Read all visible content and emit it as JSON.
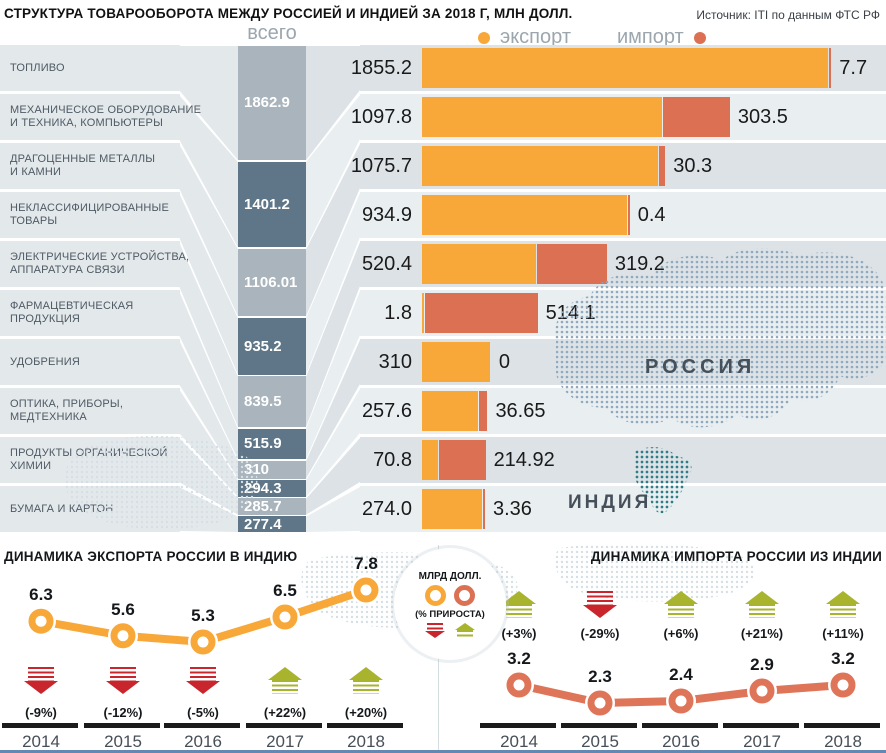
{
  "header": {
    "title": "СТРУКТУРА ТОВАРООБОРОТА МЕЖДУ РОССИЕЙ И ИНДИЕЙ ЗА 2018 Г, МЛН ДОЛЛ.",
    "source": "Источник: ITI по данным ФТС РФ"
  },
  "legend": {
    "total_label": "всего",
    "export_label": "экспорт",
    "import_label": "импорт"
  },
  "map": {
    "russia_label": "РОССИЯ",
    "india_label": "ИНДИЯ"
  },
  "badge": {
    "line1": "МЛРД ДОЛЛ.",
    "line2": "(% ПРИРОСТА)"
  },
  "colors": {
    "export": "#F7A838",
    "import": "#DC7053",
    "total_light": "#A9B4BC",
    "total_dark": "#5E7687",
    "stripe_dark": "#DCE2E6",
    "stripe_light": "#E9EEF1",
    "band": "#E3E8EB",
    "arrow_up": "#A9B42E",
    "arrow_down": "#C9252C",
    "timeline_bar": "#1B1B1B",
    "map_russia": "#8FA9BE",
    "map_india": "#2F7D86",
    "map_faint": "#D5DFE5",
    "bottom_border": "#6389B2",
    "import_line": "#DF7558"
  },
  "chart_data": [
    {
      "type": "bar",
      "title": "СТРУКТУРА ТОВАРООБОРОТА МЕЖДУ РОССИЕЙ И ИНДИЕЙ ЗА 2018 Г, МЛН ДОЛЛ.",
      "units": "млн долл.",
      "legend": [
        "экспорт",
        "импорт"
      ],
      "rows": [
        {
          "label_lines": [
            "ТОПЛИВО"
          ],
          "total": 1862.9,
          "total_display": "1862.9",
          "export": 1855.2,
          "export_display": "1855.2",
          "import": 7.7,
          "import_display": "7.7"
        },
        {
          "label_lines": [
            "МЕХАНИЧЕСКОЕ ОБОРУДОВАНИЕ",
            "И ТЕХНИКА, КОМПЬЮТЕРЫ"
          ],
          "total": 1401.2,
          "total_display": "1401.2",
          "export": 1097.8,
          "export_display": "1097.8",
          "import": 303.5,
          "import_display": "303.5"
        },
        {
          "label_lines": [
            "ДРАГОЦЕННЫЕ МЕТАЛЛЫ",
            "И КАМНИ"
          ],
          "total": 1106.01,
          "total_display": "1106.01",
          "export": 1075.7,
          "export_display": "1075.7",
          "import": 30.3,
          "import_display": "30.3"
        },
        {
          "label_lines": [
            "НЕКЛАССИФИЦИРОВАННЫЕ",
            "ТОВАРЫ"
          ],
          "total": 935.2,
          "total_display": "935.2",
          "export": 934.9,
          "export_display": "934.9",
          "import": 0.4,
          "import_display": "0.4"
        },
        {
          "label_lines": [
            "ЭЛЕКТРИЧЕСКИЕ УСТРОЙСТВА,",
            "АППАРАТУРА СВЯЗИ"
          ],
          "total": 839.5,
          "total_display": "839.5",
          "export": 520.4,
          "export_display": "520.4",
          "import": 319.2,
          "import_display": "319.2"
        },
        {
          "label_lines": [
            "ФАРМАЦЕВТИЧЕСКАЯ",
            "ПРОДУКЦИЯ"
          ],
          "total": 515.9,
          "total_display": "515.9",
          "export": 1.8,
          "export_display": "1.8",
          "import": 514.1,
          "import_display": "514.1"
        },
        {
          "label_lines": [
            "УДОБРЕНИЯ"
          ],
          "total": 310,
          "total_display": "310",
          "export": 310,
          "export_display": "310",
          "import": 0,
          "import_display": "0"
        },
        {
          "label_lines": [
            "ОПТИКА, ПРИБОРЫ,",
            "МЕДТЕХНИКА"
          ],
          "total": 294.3,
          "total_display": "294.3",
          "export": 257.6,
          "export_display": "257.6",
          "import": 36.65,
          "import_display": "36.65"
        },
        {
          "label_lines": [
            "ПРОДУКТЫ ОРГАНИЧЕСКОЙ",
            "ХИМИИ"
          ],
          "total": 285.7,
          "total_display": "285.7",
          "export": 70.8,
          "export_display": "70.8",
          "import": 214.92,
          "import_display": "214.92"
        },
        {
          "label_lines": [
            "БУМАГА И КАРТОН"
          ],
          "total": 277.4,
          "total_display": "277.4",
          "export": 274.0,
          "export_display": "274.0",
          "import": 3.36,
          "import_display": "3.36"
        }
      ]
    },
    {
      "type": "line",
      "title": "ДИНАМИКА ЭКСПОРТА РОССИИ В ИНДИЮ",
      "units": "МЛРД ДОЛЛ.",
      "x": [
        2014,
        2015,
        2016,
        2017,
        2018
      ],
      "values": [
        6.3,
        5.6,
        5.3,
        6.5,
        7.8
      ],
      "value_displays": [
        "6.3",
        "5.6",
        "5.3",
        "6.5",
        "7.8"
      ],
      "pct_change": [
        "(-9%)",
        "(-12%)",
        "(-5%)",
        "(+22%)",
        "(+20%)"
      ],
      "directions": [
        "down",
        "down",
        "down",
        "up",
        "up"
      ]
    },
    {
      "type": "line",
      "title": "ДИНАМИКА ИМПОРТА РОССИИ ИЗ ИНДИИ",
      "units": "МЛРД ДОЛЛ.",
      "x": [
        2014,
        2015,
        2016,
        2017,
        2018
      ],
      "values": [
        3.2,
        2.3,
        2.4,
        2.9,
        3.2
      ],
      "value_displays": [
        "3.2",
        "2.3",
        "2.4",
        "2.9",
        "3.2"
      ],
      "pct_change": [
        "(+3%)",
        "(-29%)",
        "(+6%)",
        "(+21%)",
        "(+11%)"
      ],
      "directions": [
        "up",
        "down",
        "up",
        "up",
        "up"
      ]
    }
  ]
}
